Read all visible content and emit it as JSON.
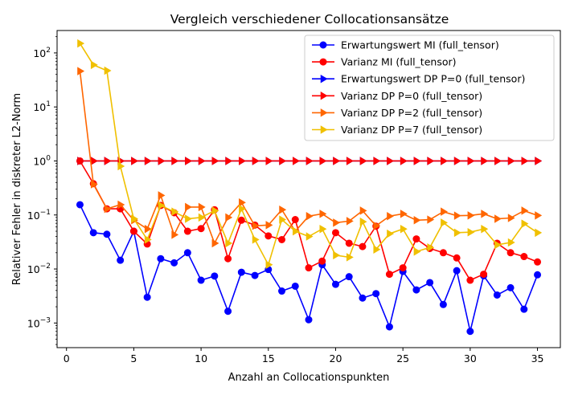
{
  "chart_data": {
    "type": "line",
    "title": "Vergleich verschiedener Collocationsansätze",
    "xlabel": "Anzahl an Collocationspunkten",
    "ylabel": "Relativer Fehler in diskreter L2-Norm",
    "xlim": [
      -0.7,
      36.7
    ],
    "ylim": [
      0.00035,
      260
    ],
    "yscale": "log",
    "grid": false,
    "legend_position": "top-right",
    "xticks": [
      0,
      5,
      10,
      15,
      20,
      25,
      30,
      35
    ],
    "yticks": [
      {
        "value": 0.001,
        "base": "10",
        "exp": "−3"
      },
      {
        "value": 0.01,
        "base": "10",
        "exp": "−2"
      },
      {
        "value": 0.1,
        "base": "10",
        "exp": "−1"
      },
      {
        "value": 1,
        "base": "10",
        "exp": "0"
      },
      {
        "value": 10,
        "base": "10",
        "exp": "1"
      },
      {
        "value": 100,
        "base": "10",
        "exp": "2"
      }
    ],
    "x": [
      1,
      2,
      3,
      4,
      5,
      6,
      7,
      8,
      9,
      10,
      11,
      12,
      13,
      14,
      15,
      16,
      17,
      18,
      19,
      20,
      21,
      22,
      23,
      24,
      25,
      26,
      27,
      28,
      29,
      30,
      31,
      32,
      33,
      34,
      35
    ],
    "series": [
      {
        "name": "Erwartungswert MI (full_tensor)",
        "color": "#0000ff",
        "marker": "circle",
        "values": [
          0.155,
          0.047,
          0.044,
          0.0145,
          0.05,
          0.003,
          0.0155,
          0.013,
          0.02,
          0.0062,
          0.0074,
          0.00165,
          0.0087,
          0.0076,
          0.0098,
          0.0039,
          0.0048,
          0.00115,
          0.012,
          0.0052,
          0.0072,
          0.0029,
          0.0035,
          0.00085,
          0.009,
          0.0041,
          0.0056,
          0.0022,
          0.0093,
          0.0007,
          0.0075,
          0.0033,
          0.0045,
          0.0018,
          0.0078
        ]
      },
      {
        "name": "Varianz MI (full_tensor)",
        "color": "#ff0000",
        "marker": "circle",
        "values": [
          1.0,
          0.38,
          0.13,
          0.13,
          0.05,
          0.029,
          0.15,
          0.11,
          0.05,
          0.056,
          0.125,
          0.0155,
          0.08,
          0.065,
          0.041,
          0.035,
          0.082,
          0.0105,
          0.014,
          0.047,
          0.03,
          0.026,
          0.062,
          0.008,
          0.0105,
          0.036,
          0.024,
          0.02,
          0.016,
          0.0062,
          0.008,
          0.03,
          0.02,
          0.017,
          0.0135
        ]
      },
      {
        "name": "Erwartungswert DP P=0 (full_tensor)",
        "color": "#0000ff",
        "marker": "triangle-right",
        "values": [
          1,
          1,
          1,
          1,
          1,
          1,
          1,
          1,
          1,
          1,
          1,
          1,
          1,
          1,
          1,
          1,
          1,
          1,
          1,
          1,
          1,
          1,
          1,
          1,
          1,
          1,
          1,
          1,
          1,
          1,
          1,
          1,
          1,
          1,
          1
        ]
      },
      {
        "name": "Varianz DP P=0 (full_tensor)",
        "color": "#ff0000",
        "marker": "triangle-right",
        "values": [
          1,
          1,
          1,
          1,
          1,
          1,
          1,
          1,
          1,
          1,
          1,
          1,
          1,
          1,
          1,
          1,
          1,
          1,
          1,
          1,
          1,
          1,
          1,
          1,
          1,
          1,
          1,
          1,
          1,
          1,
          1,
          1,
          1,
          1,
          1
        ]
      },
      {
        "name": "Varianz DP P=2 (full_tensor)",
        "color": "#ff6600",
        "marker": "triangle-right",
        "values": [
          46,
          0.37,
          0.13,
          0.155,
          0.08,
          0.055,
          0.23,
          0.043,
          0.14,
          0.14,
          0.03,
          0.09,
          0.17,
          0.063,
          0.065,
          0.125,
          0.05,
          0.095,
          0.105,
          0.072,
          0.077,
          0.12,
          0.063,
          0.095,
          0.105,
          0.08,
          0.082,
          0.115,
          0.097,
          0.098,
          0.105,
          0.085,
          0.088,
          0.12,
          0.098
        ]
      },
      {
        "name": "Varianz DP P=7 (full_tensor)",
        "color": "#f0c000",
        "marker": "triangle-right",
        "values": [
          150,
          60,
          47,
          0.8,
          0.085,
          0.035,
          0.15,
          0.115,
          0.085,
          0.09,
          0.12,
          0.03,
          0.13,
          0.035,
          0.012,
          0.082,
          0.05,
          0.04,
          0.055,
          0.018,
          0.0165,
          0.075,
          0.023,
          0.045,
          0.055,
          0.021,
          0.025,
          0.072,
          0.047,
          0.048,
          0.055,
          0.028,
          0.031,
          0.069,
          0.047
        ]
      }
    ]
  }
}
